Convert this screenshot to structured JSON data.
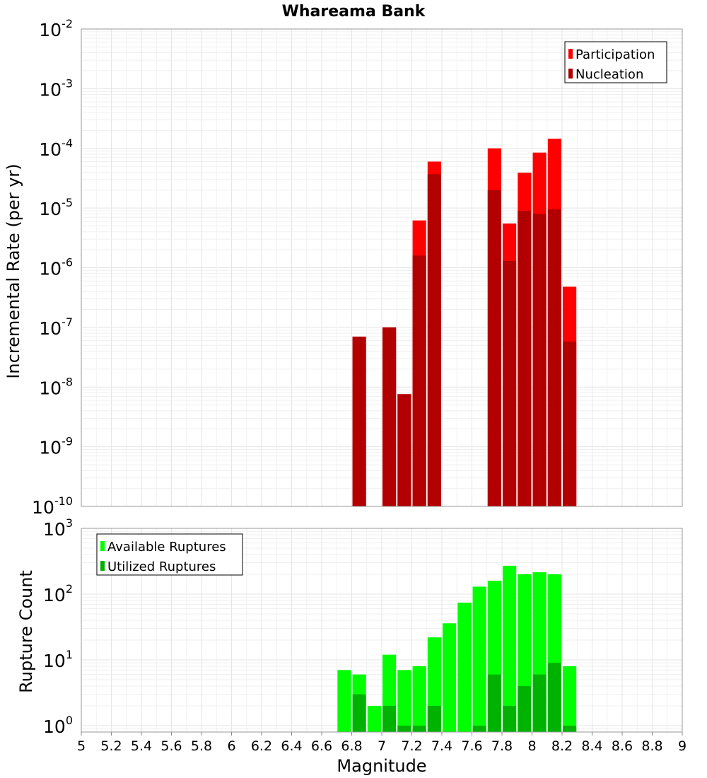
{
  "chart_data": [
    {
      "type": "bar",
      "title": "Whareama Bank",
      "ylabel": "Incremental Rate (per yr)",
      "yscale": "log",
      "ylim": [
        1e-10,
        0.01
      ],
      "xlim": [
        5,
        9
      ],
      "y_tick_exponents": [
        -10,
        -9,
        -8,
        -7,
        -6,
        -5,
        -4,
        -3,
        -2
      ],
      "grid": true,
      "legend_position": "top-right",
      "bar_width": 0.09,
      "series": [
        {
          "name": "Participation",
          "color": "#ff0000",
          "x": [
            6.85,
            7.05,
            7.15,
            7.25,
            7.35,
            7.75,
            7.85,
            7.95,
            8.05,
            8.15,
            8.25
          ],
          "values": [
            7e-08,
            1e-07,
            7.6e-09,
            6.2e-06,
            6e-05,
            0.0001,
            5.5e-06,
            3.9e-05,
            8.5e-05,
            0.000145,
            4.8e-07
          ]
        },
        {
          "name": "Nucleation",
          "color": "#b20000",
          "x": [
            6.85,
            7.05,
            7.15,
            7.25,
            7.35,
            7.75,
            7.85,
            7.95,
            8.05,
            8.15,
            8.25
          ],
          "values": [
            7e-08,
            1e-07,
            7.6e-09,
            1.6e-06,
            3.7e-05,
            2e-05,
            1.3e-06,
            9e-06,
            8e-06,
            9.5e-06,
            5.8e-08
          ]
        }
      ]
    },
    {
      "type": "bar",
      "ylabel": "Rupture Count",
      "xlabel": "Magnitude",
      "yscale": "log",
      "ylim": [
        0.8,
        1000
      ],
      "xlim": [
        5,
        9
      ],
      "x_ticks": [
        "5",
        "5.2",
        "5.4",
        "5.6",
        "5.8",
        "6",
        "6.2",
        "6.4",
        "6.6",
        "6.8",
        "7",
        "7.2",
        "7.4",
        "7.6",
        "7.8",
        "8",
        "8.2",
        "8.4",
        "8.6",
        "8.8",
        "9"
      ],
      "y_tick_exponents": [
        0,
        1,
        2,
        3
      ],
      "grid": true,
      "legend_position": "top-left",
      "bar_width": 0.09,
      "series": [
        {
          "name": "Available Ruptures",
          "color": "#00ff00",
          "x": [
            6.75,
            6.85,
            6.95,
            7.05,
            7.15,
            7.25,
            7.35,
            7.45,
            7.55,
            7.65,
            7.75,
            7.85,
            7.95,
            8.05,
            8.15,
            8.25
          ],
          "values": [
            7,
            6,
            2,
            12,
            7,
            8,
            22,
            36,
            74,
            130,
            160,
            270,
            200,
            215,
            200,
            8
          ]
        },
        {
          "name": "Utilized Ruptures",
          "color": "#00b200",
          "x": [
            6.75,
            6.85,
            6.95,
            7.05,
            7.15,
            7.25,
            7.35,
            7.45,
            7.55,
            7.65,
            7.75,
            7.85,
            7.95,
            8.05,
            8.15,
            8.25
          ],
          "values": [
            0,
            3,
            0,
            2,
            1,
            1,
            2,
            0,
            0,
            1,
            6,
            2,
            4,
            6,
            9,
            1
          ]
        }
      ]
    }
  ]
}
